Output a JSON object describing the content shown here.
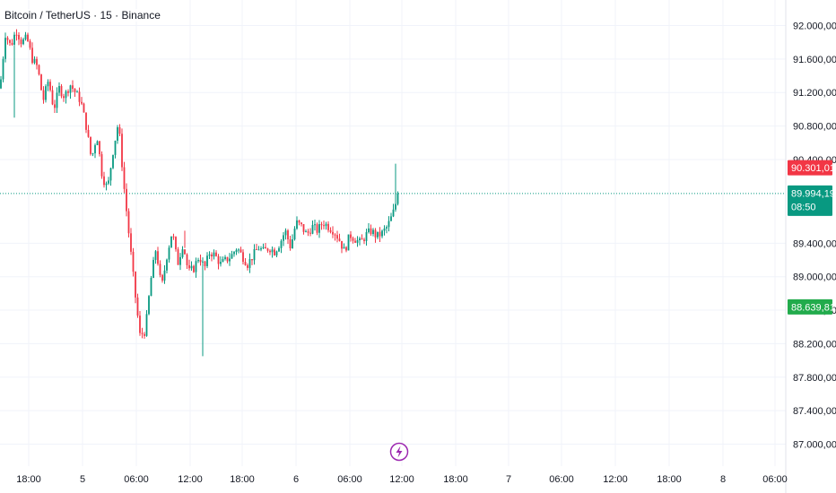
{
  "title": "Bitcoin / TetherUS · 15 · Binance",
  "colors": {
    "up": "#089981",
    "down": "#f23645",
    "current": "#089981",
    "red_tag": "#f23645",
    "green_tag": "#22ab4c",
    "grid": "#f0f3fa",
    "event": "#9c27b0"
  },
  "event_icon": "lightning-icon",
  "chart_data": {
    "type": "candlestick",
    "title": "Bitcoin / TetherUS · 15 · Binance",
    "x_ticks": [
      "18:00",
      "5",
      "06:00",
      "12:00",
      "18:00",
      "6",
      "06:00",
      "12:00",
      "18:00",
      "7",
      "06:00",
      "12:00",
      "18:00",
      "8",
      "06:00"
    ],
    "y_ticks": [
      "92.000,00",
      "91.600,00",
      "91.200,00",
      "90.800,00",
      "90.400,00",
      "89.400,00",
      "89.000,00",
      "88.600,00",
      "88.200,00",
      "87.800,00",
      "87.400,00",
      "87.000,00"
    ],
    "y_tick_values": [
      92000,
      91600,
      91200,
      90800,
      90400,
      89400,
      89000,
      88600,
      88200,
      87800,
      87400,
      87000
    ],
    "ylim": [
      86850,
      92200
    ],
    "current_price": {
      "label": "89.994,19",
      "value": 89994.19,
      "countdown": "08:50"
    },
    "price_tags": [
      {
        "label": "90.301,01",
        "value": 90301.01,
        "color": "red"
      },
      {
        "label": "88.639,81",
        "value": 88639.81,
        "color": "green"
      }
    ],
    "key_points": [
      {
        "time": "start",
        "price": 91250
      },
      {
        "time": "around 5 00:00",
        "price": 91950
      },
      {
        "time": "5 06:00",
        "price": 91800
      },
      {
        "time": "5 07:00",
        "price": 91100
      },
      {
        "time": "5 09:00",
        "price": 91300
      },
      {
        "time": "5 11:00",
        "price": 90400
      },
      {
        "time": "5 12:30 (low)",
        "price": 88050
      },
      {
        "time": "5 18:00",
        "price": 89150
      },
      {
        "time": "6 00:00",
        "price": 89600
      },
      {
        "time": "6 06:00",
        "price": 89300
      },
      {
        "time": "6 12:00",
        "price": 89994.19
      }
    ]
  }
}
